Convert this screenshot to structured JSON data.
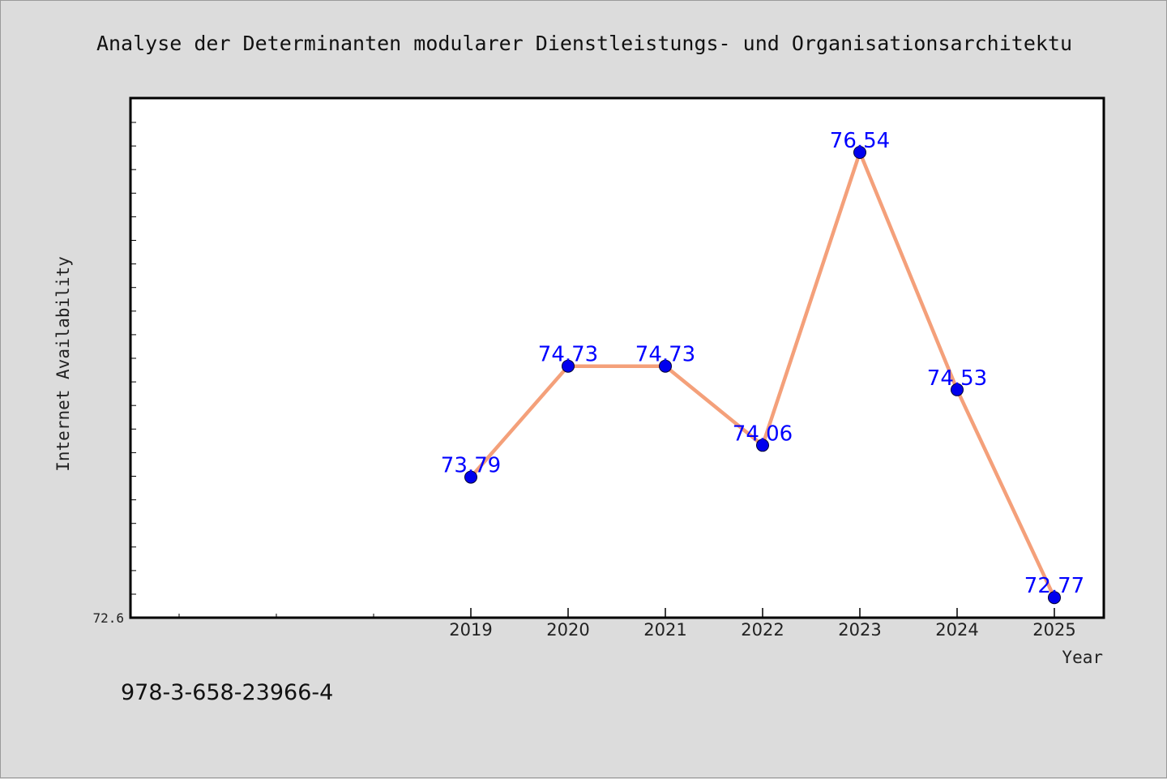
{
  "chart_data": {
    "type": "line",
    "title": "Analyse der Determinanten modularer Dienstleistungs- und Organisationsarchitektu",
    "xlabel": "Year",
    "ylabel": "Internet Availability",
    "categories": [
      "2019",
      "2020",
      "2021",
      "2022",
      "2023",
      "2024",
      "2025"
    ],
    "series": [
      {
        "values": [
          73.79,
          74.73,
          74.73,
          74.06,
          76.54,
          74.53,
          72.77
        ]
      }
    ],
    "data_labels": [
      "73.79",
      "74.73",
      "74.73",
      "74.06",
      "76.54",
      "74.53",
      "72.77"
    ],
    "ytick_labels": [
      "72.6"
    ],
    "ylim": [
      72.6,
      77.0
    ],
    "grid": false,
    "colors": {
      "line": "#f4a07a",
      "marker": "#0000ee",
      "label": "#0000ff",
      "plot_bg": "#ffffff",
      "page_bg": "#dcdcdc"
    }
  },
  "footer": {
    "isbn": "978-3-658-23966-4"
  }
}
